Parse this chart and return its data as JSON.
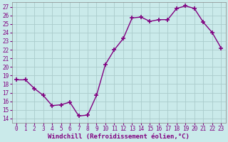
{
  "x": [
    0,
    1,
    2,
    3,
    4,
    5,
    6,
    7,
    8,
    9,
    10,
    11,
    12,
    13,
    14,
    15,
    16,
    17,
    18,
    19,
    20,
    21,
    22,
    23
  ],
  "y": [
    18.5,
    18.5,
    17.5,
    16.7,
    15.5,
    15.6,
    15.9,
    14.3,
    14.4,
    16.7,
    20.3,
    22.0,
    23.3,
    25.7,
    25.8,
    25.3,
    25.5,
    25.5,
    26.8,
    27.1,
    26.8,
    25.2,
    24.0,
    22.2
  ],
  "line_color": "#800080",
  "marker": "+",
  "marker_size": 5,
  "marker_lw": 1.2,
  "line_width": 1.0,
  "bg_color": "#caeaea",
  "grid_color": "#aacccc",
  "xlabel": "Windchill (Refroidissement éolien,°C)",
  "ylim": [
    13.5,
    27.5
  ],
  "xlim": [
    -0.5,
    23.5
  ],
  "yticks": [
    14,
    15,
    16,
    17,
    18,
    19,
    20,
    21,
    22,
    23,
    24,
    25,
    26,
    27
  ],
  "xticks": [
    0,
    1,
    2,
    3,
    4,
    5,
    6,
    7,
    8,
    9,
    10,
    11,
    12,
    13,
    14,
    15,
    16,
    17,
    18,
    19,
    20,
    21,
    22,
    23
  ],
  "tick_fontsize": 5.5,
  "xlabel_fontsize": 6.5,
  "spine_color": "#888888"
}
